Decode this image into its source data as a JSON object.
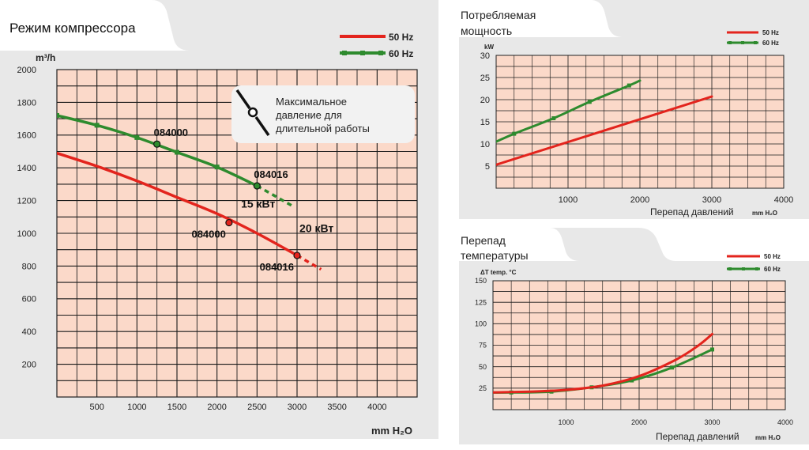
{
  "colors": {
    "red": "#e3241d",
    "green": "#2e8b2e",
    "plot_bg": "#fbd9c9",
    "panel_bg": "#e8e8e8",
    "grid": "#1a1a1a"
  },
  "legend": {
    "hz50": "50 Hz",
    "hz60": "60 Hz"
  },
  "chart_data": [
    {
      "type": "line",
      "title": "Режим компрессора",
      "xlabel": "mm H₂O",
      "ylabel": "m³/h",
      "xlim": [
        0,
        4500
      ],
      "ylim": [
        0,
        2000
      ],
      "xticks": [
        500,
        1000,
        1500,
        2000,
        2500,
        3000,
        3500,
        4000
      ],
      "yticks": [
        200,
        400,
        600,
        800,
        1000,
        1200,
        1400,
        1600,
        1800,
        2000
      ],
      "series": [
        {
          "name": "60 Hz",
          "color": "green",
          "x": [
            0,
            500,
            1000,
            1500,
            2000,
            2500
          ],
          "y": [
            1720,
            1660,
            1585,
            1495,
            1405,
            1290
          ],
          "dashed_x": [
            2500,
            2950
          ],
          "dashed_y": [
            1290,
            1165
          ]
        },
        {
          "name": "50 Hz",
          "color": "red",
          "x": [
            0,
            500,
            1000,
            1500,
            2000,
            2500,
            3000
          ],
          "y": [
            1490,
            1410,
            1320,
            1220,
            1120,
            1000,
            865
          ],
          "dashed_x": [
            3000,
            3300
          ],
          "dashed_y": [
            865,
            780
          ]
        }
      ],
      "points": [
        {
          "label": "084000",
          "x": 1250,
          "y": 1545,
          "color": "green",
          "label_pos": "above-right"
        },
        {
          "label": "084016",
          "x": 2500,
          "y": 1290,
          "color": "green",
          "label_pos": "above-right"
        },
        {
          "label": "084000",
          "x": 2150,
          "y": 1065,
          "color": "red",
          "label_pos": "below-left"
        },
        {
          "label": "084016",
          "x": 3000,
          "y": 865,
          "color": "red",
          "label_pos": "below-left"
        }
      ],
      "power_labels": [
        {
          "text": "15 кВт",
          "x": 2300,
          "y": 1060
        },
        {
          "text": "20 кВт",
          "x": 3030,
          "y": 910
        }
      ],
      "note": {
        "line1": "Максимальное",
        "line2": "давление для",
        "line3": "длительной работы"
      }
    },
    {
      "type": "line",
      "title_line1": "Потребляемая",
      "title_line2": "мощность",
      "xlabel": "Перепад давлений",
      "xunit": "mm H₂O",
      "ylabel": "kW",
      "xlim": [
        0,
        4000
      ],
      "ylim": [
        0,
        30
      ],
      "xticks": [
        1000,
        2000,
        3000,
        4000
      ],
      "yticks": [
        5,
        10,
        15,
        20,
        25,
        30
      ],
      "series": [
        {
          "name": "60 Hz",
          "color": "green",
          "x": [
            0,
            250,
            800,
            1300,
            1850,
            2000
          ],
          "y": [
            10.5,
            12.3,
            15.8,
            19.5,
            23.2,
            24.3
          ]
        },
        {
          "name": "50 Hz",
          "color": "red",
          "x": [
            0,
            3000
          ],
          "y": [
            5.3,
            20.7
          ]
        }
      ]
    },
    {
      "type": "line",
      "title_line1": "Перепад",
      "title_line2": "температуры",
      "xlabel": "Перепад давлений",
      "xunit": "mm H₂O",
      "ylabel": "ΔT  temp. °C",
      "xlim": [
        0,
        4000
      ],
      "ylim": [
        0,
        150
      ],
      "xticks": [
        1000,
        2000,
        3000,
        4000
      ],
      "yticks": [
        25,
        50,
        75,
        100,
        125,
        150
      ],
      "series": [
        {
          "name": "60 Hz",
          "color": "green",
          "x": [
            0,
            250,
            800,
            1350,
            1900,
            2450,
            3000
          ],
          "y": [
            20,
            20,
            21,
            26,
            34,
            49,
            70
          ]
        },
        {
          "name": "50 Hz",
          "color": "red",
          "x": [
            0,
            500,
            1000,
            1500,
            2000,
            2500,
            2800,
            3000
          ],
          "y": [
            20,
            21,
            23,
            28,
            39,
            58,
            74,
            88
          ]
        }
      ]
    }
  ]
}
